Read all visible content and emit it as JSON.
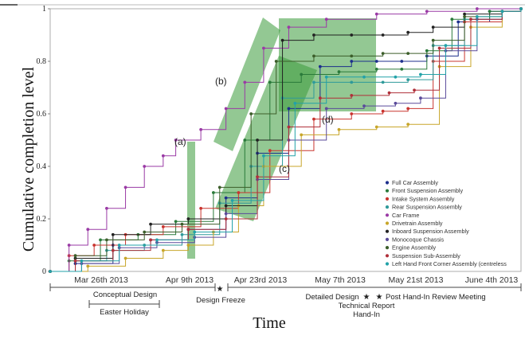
{
  "chart_data": {
    "type": "line",
    "xlabel": "Time",
    "ylabel": "Cumulative completion level",
    "x_tick_labels": [
      "Mar 26th 2013",
      "Apr 9th 2013",
      "Apr 23rd 2013",
      "May 7th 2013",
      "May 21st 2013",
      "June 4th 2013"
    ],
    "y_tick_labels": [
      "0",
      "0.2",
      "0.4",
      "0.6",
      "0.8",
      "1"
    ],
    "ylim": [
      0,
      1
    ],
    "grid": false,
    "legend_position": "bottom-right",
    "series": [
      {
        "name": "Full Car Assembly",
        "color": "#1d2f8c",
        "x": [
          0,
          4,
          10,
          16,
          22,
          28,
          33,
          38,
          43,
          48,
          52,
          56,
          60,
          65,
          70,
          75
        ],
        "y": [
          0,
          0.03,
          0.1,
          0.12,
          0.16,
          0.28,
          0.45,
          0.62,
          0.78,
          0.8,
          0.8,
          0.8,
          0.82,
          0.95,
          0.99,
          1
        ]
      },
      {
        "name": "Front Suspension Assembly",
        "color": "#2a7a3a",
        "x": [
          0,
          3,
          8,
          14,
          20,
          26,
          31,
          35,
          40,
          46,
          52,
          56,
          60,
          64,
          70,
          75
        ],
        "y": [
          0,
          0.04,
          0.12,
          0.14,
          0.19,
          0.3,
          0.5,
          0.72,
          0.75,
          0.76,
          0.77,
          0.77,
          0.84,
          0.96,
          0.99,
          1
        ]
      },
      {
        "name": "Intake System Assembly",
        "color": "#c9342f",
        "x": [
          0,
          3,
          7,
          12,
          18,
          24,
          30,
          35,
          42,
          48,
          53,
          57,
          61,
          66,
          72,
          75
        ],
        "y": [
          0,
          0.06,
          0.1,
          0.14,
          0.17,
          0.24,
          0.3,
          0.46,
          0.58,
          0.6,
          0.61,
          0.62,
          0.8,
          0.95,
          0.99,
          1
        ]
      },
      {
        "name": "Rear Suspension Assembly",
        "color": "#2f9a9a",
        "x": [
          0,
          4,
          9,
          15,
          21,
          27,
          32,
          37,
          42,
          48,
          53,
          57,
          61,
          66,
          72,
          75
        ],
        "y": [
          0,
          0.04,
          0.08,
          0.1,
          0.14,
          0.26,
          0.4,
          0.66,
          0.72,
          0.72,
          0.72,
          0.73,
          0.86,
          0.96,
          0.99,
          1
        ]
      },
      {
        "name": "Car Frame",
        "color": "#9a3aa5",
        "x": [
          0,
          3,
          6,
          9,
          12,
          15,
          18,
          20,
          24,
          28,
          31,
          34,
          38,
          44,
          52,
          60,
          68,
          75
        ],
        "y": [
          0,
          0.1,
          0.16,
          0.24,
          0.32,
          0.4,
          0.44,
          0.5,
          0.54,
          0.62,
          0.72,
          0.85,
          0.93,
          0.96,
          0.98,
          0.99,
          1,
          1
        ]
      },
      {
        "name": "Drivetrain Assembly",
        "color": "#c8a62a",
        "x": [
          0,
          6,
          12,
          18,
          22,
          26,
          30,
          34,
          40,
          46,
          52,
          57,
          62,
          67,
          72,
          75
        ],
        "y": [
          0,
          0.02,
          0.05,
          0.08,
          0.1,
          0.15,
          0.25,
          0.4,
          0.52,
          0.54,
          0.55,
          0.56,
          0.78,
          0.93,
          0.99,
          1
        ]
      },
      {
        "name": "Inboard Suspension Assembly",
        "color": "#222222",
        "x": [
          0,
          4,
          10,
          16,
          22,
          28,
          33,
          37,
          42,
          48,
          53,
          57,
          61,
          66,
          72,
          75
        ],
        "y": [
          0,
          0.05,
          0.14,
          0.18,
          0.2,
          0.25,
          0.5,
          0.88,
          0.9,
          0.9,
          0.9,
          0.91,
          0.93,
          0.98,
          0.99,
          1
        ]
      },
      {
        "name": "Monocoque Chassis",
        "color": "#5a4a9a",
        "x": [
          0,
          5,
          11,
          17,
          23,
          28,
          33,
          38,
          44,
          50,
          55,
          59,
          63,
          68,
          72,
          75
        ],
        "y": [
          0,
          0.03,
          0.09,
          0.11,
          0.13,
          0.22,
          0.35,
          0.5,
          0.62,
          0.63,
          0.64,
          0.66,
          0.84,
          0.96,
          0.99,
          1
        ]
      },
      {
        "name": "Engine Assembly",
        "color": "#3c5e2a",
        "x": [
          0,
          4,
          9,
          15,
          21,
          27,
          32,
          36,
          42,
          48,
          53,
          57,
          61,
          66,
          72,
          75
        ],
        "y": [
          0,
          0.06,
          0.12,
          0.15,
          0.18,
          0.32,
          0.6,
          0.8,
          0.82,
          0.82,
          0.83,
          0.83,
          0.88,
          0.97,
          0.99,
          1
        ]
      },
      {
        "name": "Suspension Sub-Assembly",
        "color": "#b0303a",
        "x": [
          0,
          4,
          10,
          16,
          22,
          28,
          33,
          38,
          43,
          48,
          54,
          58,
          62,
          67,
          72,
          75
        ],
        "y": [
          0,
          0.04,
          0.08,
          0.12,
          0.16,
          0.2,
          0.36,
          0.55,
          0.66,
          0.67,
          0.68,
          0.69,
          0.85,
          0.96,
          0.99,
          1
        ]
      },
      {
        "name": "Left Hand Front Corner Assembly (centreless",
        "color": "#22a2a8",
        "x": [
          0,
          5,
          11,
          17,
          23,
          29,
          34,
          39,
          44,
          50,
          55,
          59,
          63,
          68,
          72,
          75
        ],
        "y": [
          0,
          0.04,
          0.1,
          0.12,
          0.15,
          0.27,
          0.44,
          0.64,
          0.74,
          0.74,
          0.74,
          0.75,
          0.86,
          0.97,
          0.99,
          1
        ]
      }
    ],
    "annotations": [
      "(a)",
      "(b)",
      "(c)",
      "(d)"
    ],
    "timeline": {
      "phases": [
        "Conceptual Design",
        "Easter Holiday",
        "Design Freeze",
        "Detailed Design",
        "Technical Report",
        "Hand-In",
        "Post Hand-In Review Meeting"
      ]
    }
  }
}
